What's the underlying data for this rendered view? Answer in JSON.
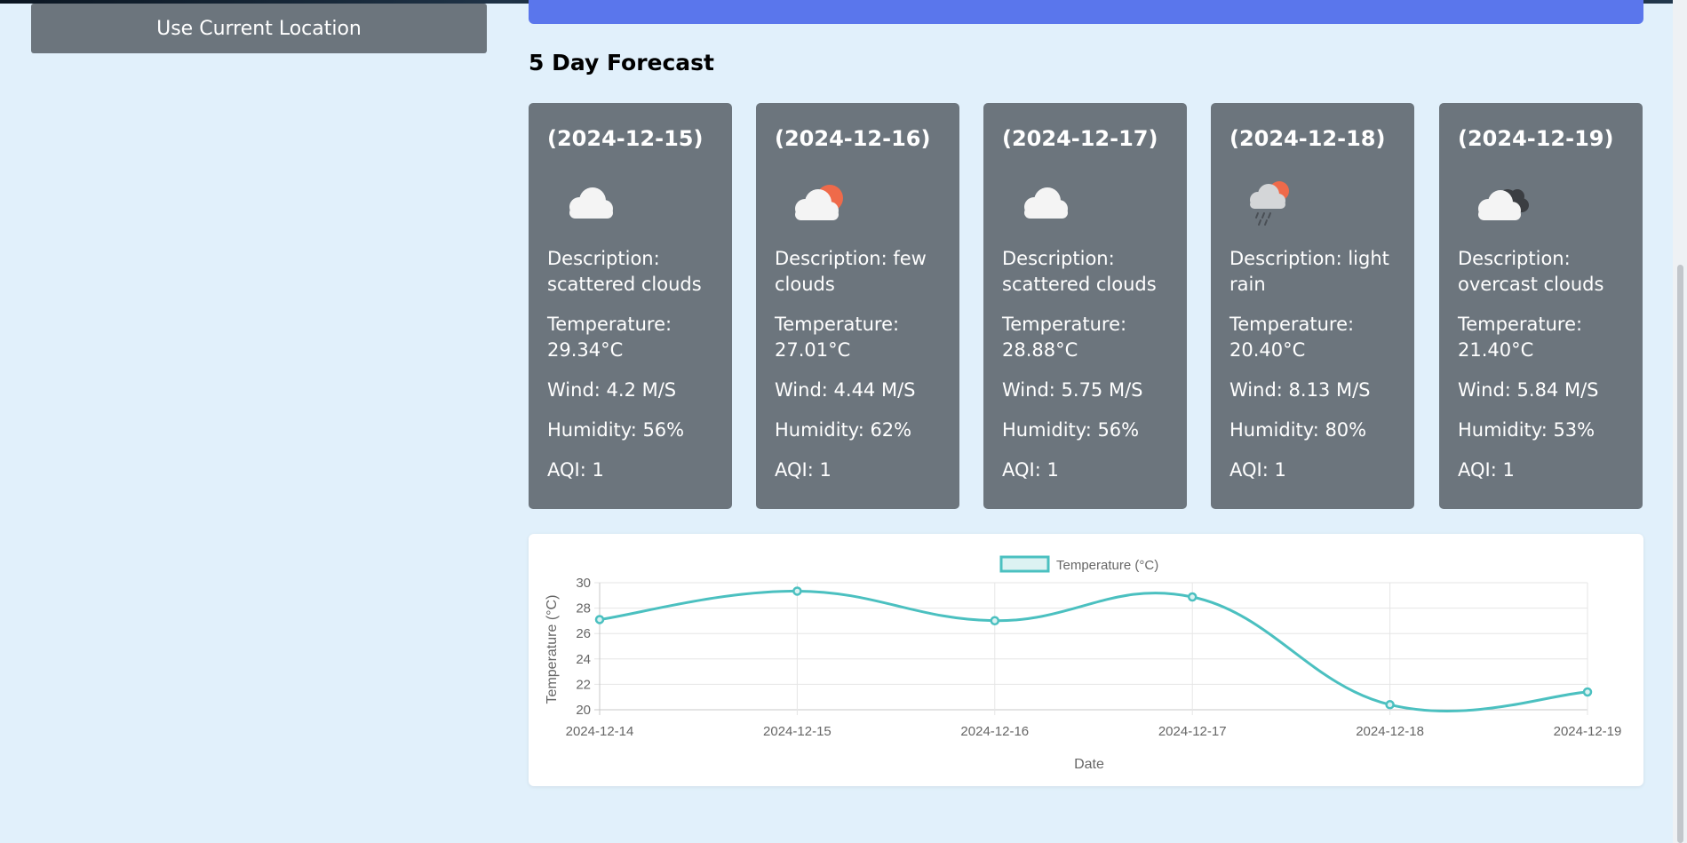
{
  "sidebar": {
    "use_location_label": "Use Current Location"
  },
  "forecast": {
    "title": "5 Day Forecast",
    "cards": [
      {
        "date": "(2024-12-15)",
        "icon": "cloud-icon",
        "description": "Description: scattered clouds",
        "temperature": "Temperature: 29.34°C",
        "wind": "Wind: 4.2 M/S",
        "humidity": "Humidity: 56%",
        "aqi": "AQI: 1"
      },
      {
        "date": "(2024-12-16)",
        "icon": "sun-cloud-icon",
        "description": "Description: few clouds",
        "temperature": "Temperature: 27.01°C",
        "wind": "Wind: 4.44 M/S",
        "humidity": "Humidity: 62%",
        "aqi": "AQI: 1"
      },
      {
        "date": "(2024-12-17)",
        "icon": "cloud-icon",
        "description": "Description: scattered clouds",
        "temperature": "Temperature: 28.88°C",
        "wind": "Wind: 5.75 M/S",
        "humidity": "Humidity: 56%",
        "aqi": "AQI: 1"
      },
      {
        "date": "(2024-12-18)",
        "icon": "rain-icon",
        "description": "Description: light rain",
        "temperature": "Temperature: 20.40°C",
        "wind": "Wind: 8.13 M/S",
        "humidity": "Humidity: 80%",
        "aqi": "AQI: 1"
      },
      {
        "date": "(2024-12-19)",
        "icon": "overcast-icon",
        "description": "Description: overcast clouds",
        "temperature": "Temperature: 21.40°C",
        "wind": "Wind: 5.84 M/S",
        "humidity": "Humidity: 53%",
        "aqi": "AQI: 1"
      }
    ]
  },
  "colors": {
    "card_bg": "#6c757d",
    "accent_blue": "#5a76ec",
    "line": "#4bc0c0",
    "page_bg": "#e1f0fb"
  },
  "chart_data": {
    "type": "line",
    "legend": "Temperature (°C)",
    "xlabel": "Date",
    "ylabel": "Temperature (°C)",
    "categories": [
      "2024-12-14",
      "2024-12-15",
      "2024-12-16",
      "2024-12-17",
      "2024-12-18",
      "2024-12-19"
    ],
    "values": [
      27.1,
      29.34,
      27.01,
      28.88,
      20.4,
      21.4
    ],
    "yticks": [
      20,
      22,
      24,
      26,
      28,
      30
    ],
    "ylim": [
      20,
      30
    ],
    "grid": true
  }
}
